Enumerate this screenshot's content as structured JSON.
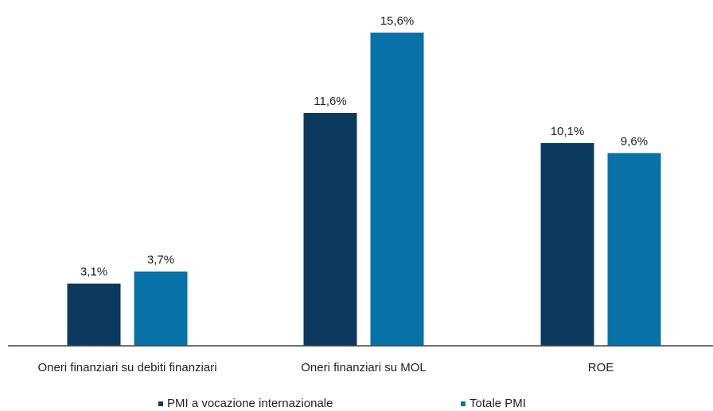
{
  "chart_data": {
    "type": "bar",
    "categories": [
      "Oneri finanziari su debiti finanziari",
      "Oneri finanziari su MOL",
      "ROE"
    ],
    "series": [
      {
        "name": "PMI a vocazione internazionale",
        "values": [
          3.1,
          11.6,
          10.1
        ],
        "labels": [
          "3,1%",
          "11,6%",
          "10,1%"
        ],
        "color": "#0b3a5e"
      },
      {
        "name": "Totale PMI",
        "values": [
          3.7,
          15.6,
          9.6
        ],
        "labels": [
          "3,7%",
          "15,6%",
          "9,6%"
        ],
        "color": "#0872a8"
      }
    ],
    "ylim": [
      0,
      16
    ],
    "grid": false,
    "legend": "bottom",
    "axis_color": "#444444"
  }
}
